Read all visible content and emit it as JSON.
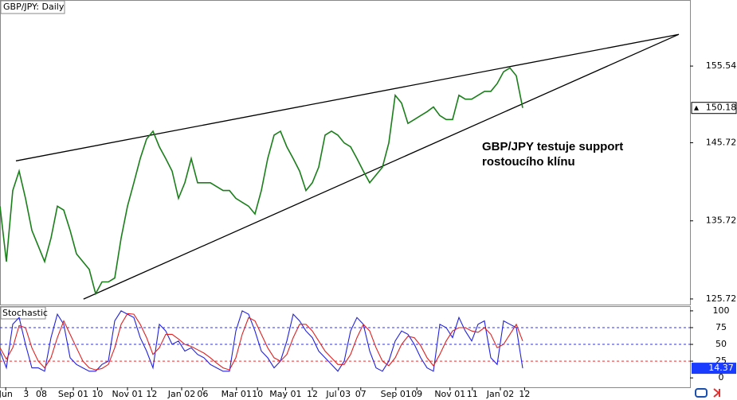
{
  "chart_data": [
    {
      "type": "line",
      "title": "GBP/JPY: Daily",
      "x": [
        0,
        1,
        2,
        3,
        4,
        5,
        6,
        7,
        8,
        9,
        10,
        11,
        12,
        13,
        14,
        15,
        16,
        17,
        18,
        19,
        20,
        21,
        22,
        23,
        24,
        25,
        26,
        27,
        28,
        29,
        30,
        31,
        32,
        33,
        34,
        35,
        36,
        37,
        38,
        39,
        40,
        41,
        42,
        43,
        44,
        45,
        46,
        47,
        48,
        49,
        50,
        51,
        52,
        53,
        54,
        55,
        56,
        57,
        58,
        59,
        60,
        61,
        62,
        63,
        64,
        65,
        66,
        67,
        68,
        69,
        70,
        71,
        72,
        73,
        74,
        75,
        76,
        77,
        78,
        79,
        80,
        81,
        82
      ],
      "series": [
        {
          "color": "#1a7f1a",
          "values": [
            137.6,
            130.5,
            139.6,
            142.1,
            138.6,
            134.5,
            132.5,
            130.5,
            133.5,
            137.6,
            137.1,
            134.5,
            131.5,
            130.5,
            129.5,
            126.4,
            127.9,
            127.9,
            128.4,
            133.5,
            137.6,
            140.6,
            143.7,
            146.2,
            147.2,
            145.2,
            143.7,
            142.1,
            138.6,
            140.6,
            143.7,
            140.6,
            140.6,
            140.6,
            140.1,
            139.6,
            139.6,
            138.6,
            138.1,
            137.6,
            136.6,
            139.6,
            143.7,
            146.7,
            147.2,
            145.2,
            143.7,
            142.1,
            139.6,
            140.6,
            142.6,
            146.7,
            147.2,
            146.7,
            145.7,
            145.2,
            143.7,
            142.1,
            140.6,
            141.6,
            142.6,
            145.7,
            151.8,
            150.8,
            148.2,
            148.7,
            149.2,
            149.7,
            150.3,
            149.2,
            148.7,
            148.7,
            151.8,
            151.3,
            151.3,
            151.8,
            152.3,
            152.3,
            153.3,
            154.8,
            155.3,
            154.3,
            150.18
          ]
        }
      ],
      "trendlines": [
        {
          "x": [
            2.5,
            106.5
          ],
          "y": [
            143.4,
            159.6
          ]
        },
        {
          "x": [
            13.1,
            106.5
          ],
          "y": [
            125.7,
            159.6
          ]
        }
      ],
      "annotation": [
        "GBP/JPY testuje support",
        "rostoucího klínu"
      ],
      "xlim": [
        0,
        108.25
      ],
      "ylim": [
        125.0,
        164.0
      ],
      "yticks": [
        125.72,
        135.72,
        145.72,
        155.54
      ]
    },
    {
      "type": "line",
      "title": "Stochastic",
      "x": [
        0,
        1,
        2,
        3,
        4,
        5,
        6,
        7,
        8,
        9,
        10,
        11,
        12,
        13,
        14,
        15,
        16,
        17,
        18,
        19,
        20,
        21,
        22,
        23,
        24,
        25,
        26,
        27,
        28,
        29,
        30,
        31,
        32,
        33,
        34,
        35,
        36,
        37,
        38,
        39,
        40,
        41,
        42,
        43,
        44,
        45,
        46,
        47,
        48,
        49,
        50,
        51,
        52,
        53,
        54,
        55,
        56,
        57,
        58,
        59,
        60,
        61,
        62,
        63,
        64,
        65,
        66,
        67,
        68,
        69,
        70,
        71,
        72,
        73,
        74,
        75,
        76,
        77,
        78,
        79,
        80,
        81,
        82
      ],
      "series": [
        {
          "color": "#2222dd",
          "values": [
            40,
            15,
            80,
            90,
            50,
            15,
            15,
            10,
            60,
            95,
            80,
            30,
            20,
            15,
            10,
            10,
            20,
            25,
            85,
            100,
            95,
            90,
            60,
            40,
            15,
            80,
            70,
            50,
            55,
            40,
            45,
            35,
            30,
            20,
            15,
            10,
            10,
            70,
            100,
            95,
            70,
            40,
            30,
            15,
            25,
            55,
            95,
            85,
            70,
            60,
            40,
            30,
            20,
            10,
            25,
            70,
            90,
            80,
            40,
            15,
            10,
            25,
            55,
            70,
            65,
            50,
            30,
            15,
            10,
            80,
            75,
            60,
            90,
            70,
            55,
            80,
            85,
            30,
            20,
            85,
            80,
            75,
            14.37
          ]
        },
        {
          "color": "#dd2222",
          "values": [
            45,
            28,
            45,
            78,
            75,
            45,
            25,
            15,
            30,
            60,
            85,
            65,
            45,
            25,
            15,
            12,
            14,
            20,
            45,
            80,
            96,
            95,
            80,
            60,
            35,
            45,
            65,
            65,
            58,
            50,
            47,
            42,
            37,
            30,
            22,
            15,
            12,
            30,
            65,
            90,
            85,
            65,
            45,
            30,
            25,
            35,
            60,
            80,
            80,
            70,
            55,
            40,
            30,
            20,
            20,
            35,
            60,
            80,
            70,
            45,
            25,
            18,
            30,
            50,
            62,
            60,
            48,
            30,
            18,
            35,
            55,
            70,
            75,
            75,
            70,
            68,
            75,
            65,
            45,
            50,
            65,
            80,
            55
          ]
        }
      ],
      "xlim": [
        0,
        108.25
      ],
      "ylim": [
        -14,
        107
      ],
      "yticks": [
        0,
        25,
        50,
        75,
        100
      ],
      "xticks": [
        {
          "value": 0.9,
          "label": "Jun"
        },
        {
          "value": 4.1,
          "label": "3"
        },
        {
          "value": 6.5,
          "label": "08"
        },
        {
          "value": 11.5,
          "label": "Sep 01"
        },
        {
          "value": 15.3,
          "label": "10"
        },
        {
          "value": 20,
          "label": "Nov 01"
        },
        {
          "value": 23.8,
          "label": "12"
        },
        {
          "value": 28.5,
          "label": "Jan 02"
        },
        {
          "value": 31.8,
          "label": "06"
        },
        {
          "value": 37.1,
          "label": "Mar 01"
        },
        {
          "value": 40.4,
          "label": "10"
        },
        {
          "value": 44.8,
          "label": "May 01"
        },
        {
          "value": 49,
          "label": "12"
        },
        {
          "value": 53.1,
          "label": "Jul 03"
        },
        {
          "value": 56.6,
          "label": "07"
        },
        {
          "value": 62.1,
          "label": "Sep 01"
        },
        {
          "value": 65.4,
          "label": "09"
        },
        {
          "value": 70.6,
          "label": "Nov 01"
        },
        {
          "value": 74.1,
          "label": "11"
        },
        {
          "value": 78.5,
          "label": "Jan 02"
        },
        {
          "value": 82.3,
          "label": "12"
        }
      ]
    }
  ]
}
